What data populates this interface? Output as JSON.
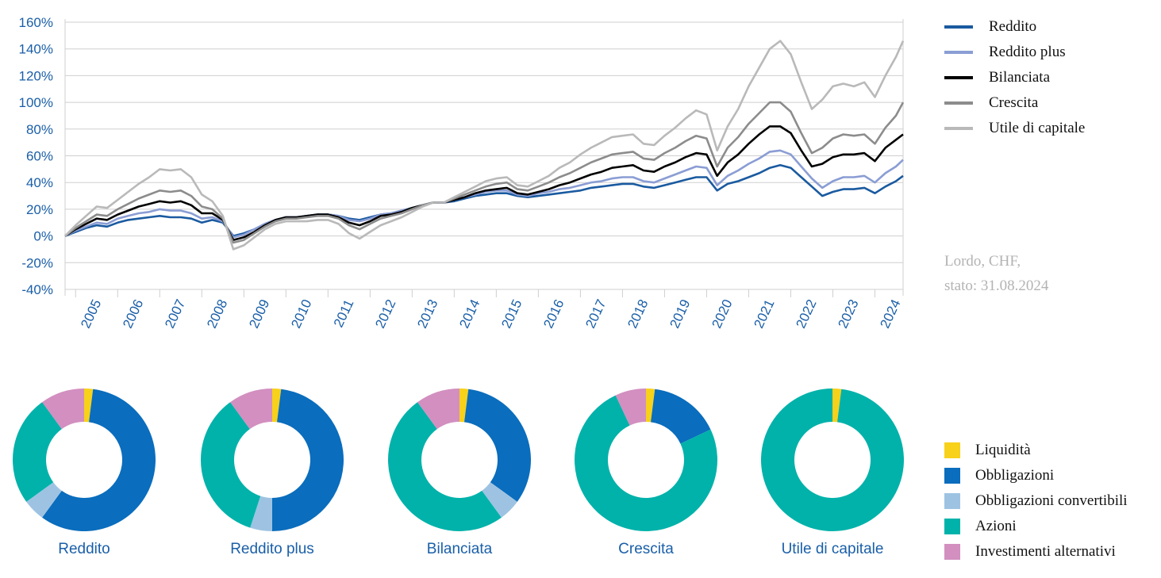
{
  "colors": {
    "axis_text": "#1a5fa8",
    "grid": "#cfcfcf"
  },
  "chart_data": [
    {
      "type": "line",
      "title": "",
      "xlabel": "",
      "ylabel": "",
      "ylim": [
        -40,
        160
      ],
      "yticks": [
        "160%",
        "140%",
        "120%",
        "100%",
        "80%",
        "60%",
        "40%",
        "20%",
        "0%",
        "-20%",
        "-40%"
      ],
      "xticks": [
        "2005",
        "2006",
        "2007",
        "2008",
        "2009",
        "2010",
        "2011",
        "2012",
        "2013",
        "2014",
        "2015",
        "2016",
        "2017",
        "2018",
        "2019",
        "2020",
        "2021",
        "2022",
        "2023",
        "2024"
      ],
      "xlim": [
        2004.75,
        2024.67
      ],
      "grid": true,
      "legend_position": "right",
      "x": [
        2004.75,
        2005.0,
        2005.25,
        2005.5,
        2005.75,
        2006.0,
        2006.25,
        2006.5,
        2006.75,
        2007.0,
        2007.25,
        2007.5,
        2007.75,
        2008.0,
        2008.25,
        2008.5,
        2008.75,
        2009.0,
        2009.25,
        2009.5,
        2009.75,
        2010.0,
        2010.25,
        2010.5,
        2010.75,
        2011.0,
        2011.25,
        2011.5,
        2011.75,
        2012.0,
        2012.25,
        2012.5,
        2012.75,
        2013.0,
        2013.25,
        2013.5,
        2013.75,
        2014.0,
        2014.25,
        2014.5,
        2014.75,
        2015.0,
        2015.25,
        2015.5,
        2015.75,
        2016.0,
        2016.25,
        2016.5,
        2016.75,
        2017.0,
        2017.25,
        2017.5,
        2017.75,
        2018.0,
        2018.25,
        2018.5,
        2018.75,
        2019.0,
        2019.25,
        2019.5,
        2019.75,
        2020.0,
        2020.25,
        2020.5,
        2020.75,
        2021.0,
        2021.25,
        2021.5,
        2021.75,
        2022.0,
        2022.25,
        2022.5,
        2022.75,
        2023.0,
        2023.25,
        2023.5,
        2023.75,
        2024.0,
        2024.25,
        2024.5,
        2024.67
      ],
      "series": [
        {
          "name": "Reddito",
          "color": "#1a5aa0",
          "values": [
            0,
            3,
            6,
            8,
            7,
            10,
            12,
            13,
            14,
            15,
            14,
            14,
            13,
            10,
            12,
            10,
            0,
            2,
            5,
            9,
            12,
            14,
            14,
            15,
            16,
            16,
            15,
            13,
            12,
            14,
            16,
            17,
            19,
            21,
            23,
            25,
            25,
            26,
            28,
            30,
            31,
            32,
            32,
            30,
            29,
            30,
            31,
            32,
            33,
            34,
            36,
            37,
            38,
            39,
            39,
            37,
            36,
            38,
            40,
            42,
            44,
            44,
            34,
            39,
            41,
            44,
            47,
            51,
            53,
            51,
            44,
            37,
            30,
            33,
            35,
            35,
            36,
            32,
            37,
            41,
            45
          ]
        },
        {
          "name": "Reddito plus",
          "color": "#8a9dd4",
          "values": [
            0,
            4,
            7,
            10,
            9,
            13,
            15,
            17,
            18,
            20,
            19,
            19,
            17,
            13,
            14,
            11,
            -1,
            1,
            5,
            9,
            12,
            14,
            14,
            15,
            16,
            16,
            15,
            12,
            11,
            13,
            16,
            17,
            19,
            21,
            23,
            25,
            25,
            27,
            29,
            31,
            33,
            34,
            34,
            31,
            30,
            32,
            33,
            35,
            36,
            38,
            40,
            41,
            43,
            44,
            44,
            41,
            40,
            43,
            46,
            49,
            52,
            51,
            38,
            45,
            49,
            54,
            58,
            63,
            64,
            61,
            52,
            43,
            36,
            41,
            44,
            44,
            45,
            40,
            47,
            52,
            57
          ]
        },
        {
          "name": "Bilanciata",
          "color": "#000000",
          "values": [
            0,
            5,
            9,
            13,
            12,
            16,
            19,
            22,
            24,
            26,
            25,
            26,
            23,
            17,
            17,
            12,
            -3,
            -1,
            3,
            8,
            12,
            14,
            14,
            15,
            16,
            16,
            14,
            10,
            8,
            11,
            15,
            16,
            18,
            21,
            23,
            25,
            25,
            27,
            29,
            32,
            34,
            35,
            36,
            32,
            31,
            33,
            35,
            38,
            40,
            43,
            46,
            48,
            51,
            52,
            53,
            49,
            48,
            52,
            55,
            59,
            62,
            61,
            45,
            55,
            61,
            69,
            76,
            82,
            82,
            77,
            64,
            52,
            54,
            59,
            61,
            61,
            62,
            56,
            66,
            72,
            76
          ]
        },
        {
          "name": "Crescita",
          "color": "#8c8c8c",
          "values": [
            0,
            6,
            11,
            16,
            15,
            20,
            24,
            28,
            31,
            34,
            33,
            34,
            30,
            22,
            20,
            13,
            -5,
            -3,
            2,
            7,
            11,
            13,
            13,
            14,
            15,
            15,
            13,
            8,
            5,
            9,
            13,
            15,
            17,
            20,
            23,
            25,
            25,
            28,
            31,
            34,
            37,
            39,
            40,
            35,
            34,
            37,
            40,
            44,
            47,
            51,
            55,
            58,
            61,
            62,
            63,
            58,
            57,
            62,
            66,
            71,
            75,
            73,
            52,
            66,
            74,
            84,
            92,
            100,
            100,
            93,
            77,
            62,
            66,
            73,
            76,
            75,
            76,
            69,
            81,
            90,
            100
          ]
        },
        {
          "name": "Utile di capitale",
          "color": "#b9b9b9",
          "values": [
            0,
            8,
            15,
            22,
            21,
            27,
            33,
            39,
            44,
            50,
            49,
            50,
            44,
            31,
            26,
            15,
            -10,
            -7,
            -1,
            5,
            9,
            11,
            11,
            11,
            12,
            12,
            9,
            2,
            -2,
            3,
            8,
            11,
            14,
            18,
            22,
            25,
            25,
            29,
            33,
            37,
            41,
            43,
            44,
            38,
            37,
            41,
            45,
            51,
            55,
            61,
            66,
            70,
            74,
            75,
            76,
            69,
            68,
            75,
            81,
            88,
            94,
            91,
            64,
            82,
            95,
            112,
            126,
            140,
            146,
            136,
            115,
            95,
            102,
            112,
            114,
            112,
            115,
            104,
            120,
            134,
            146
          ]
        }
      ]
    },
    {
      "type": "pie",
      "title": "Reddito",
      "categories": [
        "Liquidità",
        "Obbligazioni",
        "Obbligazioni convertibili",
        "Azioni",
        "Investimenti alternativi"
      ],
      "values": [
        2,
        58,
        5,
        25,
        10
      ]
    },
    {
      "type": "pie",
      "title": "Reddito plus",
      "categories": [
        "Liquidità",
        "Obbligazioni",
        "Obbligazioni convertibili",
        "Azioni",
        "Investimenti alternativi"
      ],
      "values": [
        2,
        48,
        5,
        35,
        10
      ]
    },
    {
      "type": "pie",
      "title": "Bilanciata",
      "categories": [
        "Liquidità",
        "Obbligazioni",
        "Obbligazioni convertibili",
        "Azioni",
        "Investimenti alternativi"
      ],
      "values": [
        2,
        33,
        5,
        50,
        10
      ]
    },
    {
      "type": "pie",
      "title": "Crescita",
      "categories": [
        "Liquidità",
        "Obbligazioni",
        "Obbligazioni convertibili",
        "Azioni",
        "Investimenti alternativi"
      ],
      "values": [
        2,
        16,
        0,
        75,
        7
      ]
    },
    {
      "type": "pie",
      "title": "Utile di capitale",
      "categories": [
        "Liquidità",
        "Obbligazioni",
        "Obbligazioni convertibili",
        "Azioni",
        "Investimenti alternativi"
      ],
      "values": [
        2,
        0,
        0,
        98,
        0
      ]
    }
  ],
  "line_legend": [
    {
      "label": "Reddito",
      "color": "#1a5aa0"
    },
    {
      "label": "Reddito plus",
      "color": "#8a9dd4"
    },
    {
      "label": "Bilanciata",
      "color": "#000000"
    },
    {
      "label": "Crescita",
      "color": "#8c8c8c"
    },
    {
      "label": "Utile di capitale",
      "color": "#b9b9b9"
    }
  ],
  "note": {
    "line1": "Lordo, CHF,",
    "line2": "stato: 31.08.2024"
  },
  "allocation_legend": [
    {
      "label": "Liquidità",
      "color": "#f7d11a"
    },
    {
      "label": "Obbligazioni",
      "color": "#0a6dbd"
    },
    {
      "label": "Obbligazioni convertibili",
      "color": "#9ec3e2"
    },
    {
      "label": "Azioni",
      "color": "#00b2aa"
    },
    {
      "label": "Investimenti alternativi",
      "color": "#d28fc0"
    }
  ]
}
